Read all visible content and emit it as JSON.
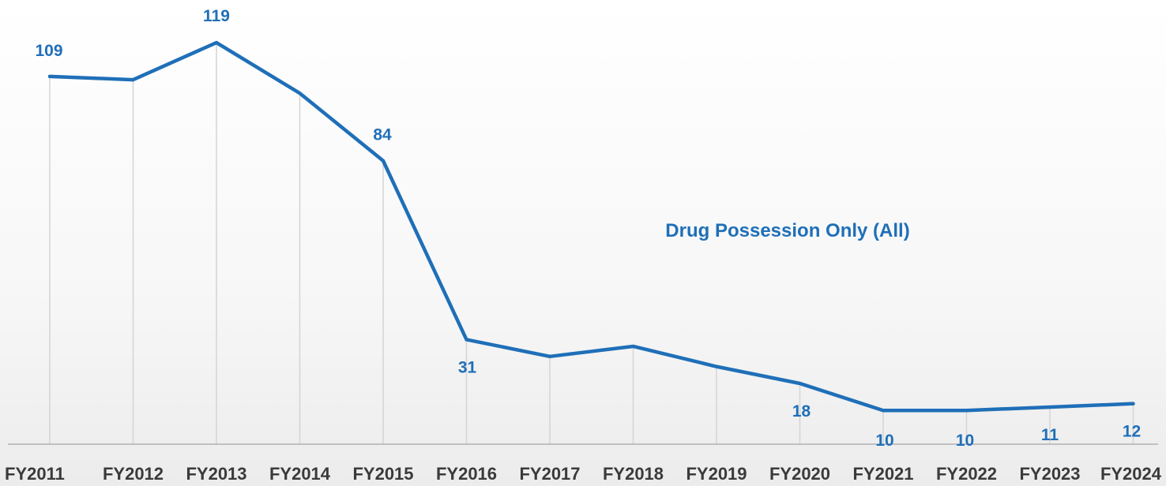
{
  "chart_data": {
    "type": "line",
    "categories": [
      "FY2011",
      "FY2012",
      "FY2013",
      "FY2014",
      "FY2015",
      "FY2016",
      "FY2017",
      "FY2018",
      "FY2019",
      "FY2020",
      "FY2021",
      "FY2022",
      "FY2023",
      "FY2024"
    ],
    "series": [
      {
        "name": "Drug Possession Only (All)",
        "values": [
          109,
          108,
          119,
          104,
          84,
          31,
          26,
          29,
          23,
          18,
          10,
          10,
          11,
          12
        ],
        "labeled_indices": [
          0,
          2,
          4,
          5,
          9,
          10,
          11,
          12,
          13
        ],
        "color": "#1f6fb8"
      }
    ],
    "title": "",
    "xlabel": "",
    "ylabel": "",
    "ylim": [
      0,
      130
    ],
    "grid": "vertical-only",
    "axis_line_color": "#b0b0b0",
    "gridline_color": "#d4d4d4"
  }
}
